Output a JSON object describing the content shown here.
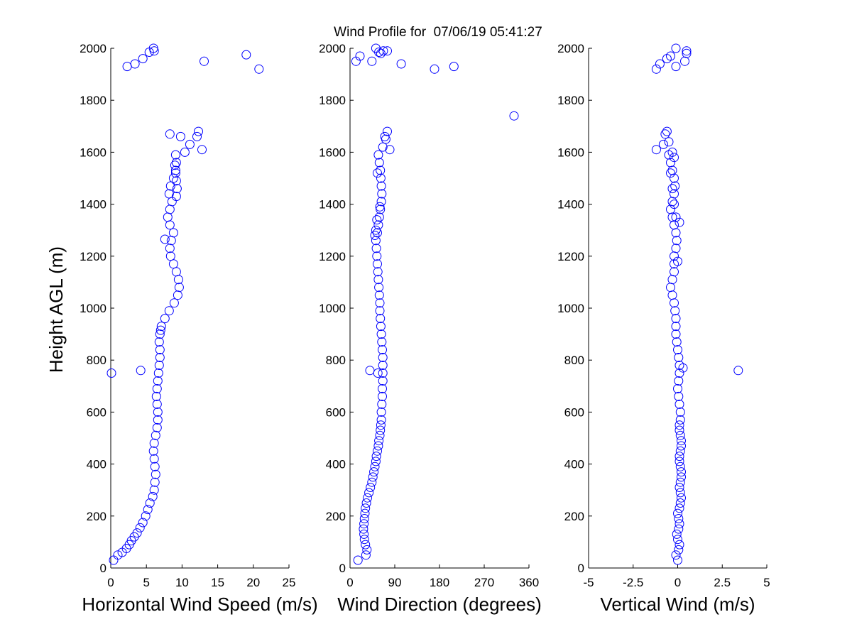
{
  "figure": {
    "title": "Wind Profile for  07/06/19 05:41:27",
    "ylabel": "Height AGL (m)"
  },
  "colors": {
    "marker": "#0000ff",
    "axis": "#000000"
  },
  "chart_data": [
    {
      "type": "scatter",
      "title": "",
      "xlabel": "Horizontal Wind Speed (m/s)",
      "ylabel": "Height AGL (m)",
      "xlim": [
        0,
        25
      ],
      "ylim": [
        0,
        2000
      ],
      "xticks": [
        0,
        5,
        10,
        15,
        20,
        25
      ],
      "xtick_labels": [
        "0",
        "5",
        "10",
        "15",
        "20",
        "25"
      ],
      "yticks": [
        0,
        200,
        400,
        600,
        800,
        1000,
        1200,
        1400,
        1600,
        1800,
        2000
      ],
      "ytick_labels": [
        "0",
        "200",
        "400",
        "600",
        "800",
        "1000",
        "1200",
        "1400",
        "1600",
        "1800",
        "2000"
      ],
      "grid": false,
      "x": [
        0.4,
        1.0,
        1.6,
        2.2,
        2.6,
        2.9,
        3.3,
        3.7,
        4.1,
        4.5,
        4.9,
        5.2,
        5.5,
        5.9,
        6.1,
        6.2,
        6.3,
        6.2,
        6.1,
        6.0,
        6.1,
        6.3,
        6.5,
        6.6,
        6.6,
        6.5,
        6.4,
        6.5,
        6.6,
        6.7,
        6.8,
        6.9,
        6.9,
        6.8,
        6.9,
        7.0,
        7.1,
        7.6,
        8.2,
        8.9,
        9.4,
        9.6,
        9.5,
        9.2,
        8.8,
        8.4,
        8.3,
        8.5,
        8.8,
        8.3,
        7.6,
        8.0,
        8.3,
        8.6,
        8.2,
        8.4,
        8.8,
        9.1,
        9.2,
        9.1,
        9.0,
        9.1,
        9.2,
        9.3,
        9.2,
        10.4,
        11.1,
        12.1,
        12.3,
        12.8,
        8.3,
        9.8,
        0.1,
        4.2,
        2.3,
        3.4,
        4.5,
        5.4,
        6.0,
        6.1,
        13.1,
        19.0,
        20.8
      ],
      "y": [
        30,
        50,
        60,
        75,
        90,
        105,
        120,
        135,
        155,
        175,
        200,
        225,
        250,
        275,
        300,
        330,
        360,
        390,
        420,
        450,
        480,
        510,
        540,
        570,
        600,
        630,
        660,
        690,
        720,
        750,
        780,
        810,
        840,
        870,
        900,
        915,
        930,
        960,
        990,
        1020,
        1050,
        1080,
        1110,
        1140,
        1170,
        1200,
        1230,
        1260,
        1290,
        1320,
        1265,
        1350,
        1380,
        1410,
        1440,
        1470,
        1500,
        1530,
        1560,
        1590,
        1550,
        1520,
        1490,
        1460,
        1430,
        1600,
        1630,
        1660,
        1680,
        1610,
        1670,
        1660,
        750,
        760,
        1930,
        1940,
        1960,
        1985,
        2000,
        1990,
        1950,
        1975,
        1920
      ]
    },
    {
      "type": "scatter",
      "title": "",
      "xlabel": "Wind Direction (degrees)",
      "ylabel": "Height AGL (m)",
      "xlim": [
        0,
        360
      ],
      "ylim": [
        0,
        2000
      ],
      "xticks": [
        0,
        90,
        180,
        270,
        360
      ],
      "xtick_labels": [
        "0",
        "90",
        "180",
        "270",
        "360"
      ],
      "yticks": [
        0,
        200,
        400,
        600,
        800,
        1000,
        1200,
        1400,
        1600,
        1800,
        2000
      ],
      "ytick_labels": [
        "0",
        "200",
        "400",
        "600",
        "800",
        "1000",
        "1200",
        "1400",
        "1600",
        "1800",
        "2000"
      ],
      "grid": false,
      "x": [
        16,
        32,
        34,
        31,
        29,
        28,
        27,
        28,
        29,
        30,
        31,
        33,
        35,
        38,
        41,
        44,
        46,
        48,
        50,
        52,
        53,
        55,
        57,
        58,
        60,
        61,
        62,
        63,
        63,
        64,
        65,
        65,
        66,
        66,
        66,
        66,
        65,
        64,
        63,
        62,
        61,
        60,
        60,
        59,
        58,
        57,
        56,
        55,
        54,
        53,
        52,
        55,
        57,
        59,
        61,
        63,
        64,
        63,
        62,
        61,
        59,
        57,
        55,
        52,
        50,
        54,
        60,
        66,
        72,
        75,
        80,
        70,
        56,
        40,
        44,
        58,
        62,
        75,
        52,
        67,
        103,
        170,
        209,
        12,
        20,
        330
      ],
      "y": [
        30,
        50,
        70,
        90,
        110,
        130,
        150,
        170,
        190,
        210,
        230,
        250,
        270,
        290,
        310,
        330,
        350,
        370,
        390,
        410,
        430,
        450,
        470,
        490,
        510,
        530,
        550,
        570,
        600,
        630,
        660,
        690,
        720,
        750,
        780,
        810,
        840,
        870,
        900,
        930,
        960,
        990,
        1020,
        1050,
        1080,
        1110,
        1140,
        1170,
        1200,
        1230,
        1260,
        1290,
        1320,
        1350,
        1380,
        1410,
        1440,
        1470,
        1500,
        1530,
        1560,
        1590,
        1520,
        1300,
        1280,
        1340,
        1390,
        1620,
        1650,
        1680,
        1610,
        1660,
        750,
        760,
        1950,
        1985,
        1980,
        1990,
        2000,
        1990,
        1940,
        1920,
        1930,
        1950,
        1970,
        1740
      ]
    },
    {
      "type": "scatter",
      "title": "",
      "xlabel": "Vertical Wind (m/s)",
      "ylabel": "Height AGL (m)",
      "xlim": [
        -5,
        5
      ],
      "ylim": [
        0,
        2000
      ],
      "xticks": [
        -5,
        -2.5,
        0,
        2.5,
        5
      ],
      "xtick_labels": [
        "-5",
        "-2.5",
        "0",
        "2.5",
        "5"
      ],
      "yticks": [
        0,
        200,
        400,
        600,
        800,
        1000,
        1200,
        1400,
        1600,
        1800,
        2000
      ],
      "ytick_labels": [
        "0",
        "200",
        "400",
        "600",
        "800",
        "1000",
        "1200",
        "1400",
        "1600",
        "1800",
        "2000"
      ],
      "grid": false,
      "x": [
        0.0,
        -0.1,
        0.05,
        0.1,
        0.0,
        -0.05,
        0.05,
        0.1,
        0.05,
        0.0,
        0.1,
        0.15,
        0.2,
        0.15,
        0.1,
        0.15,
        0.2,
        0.2,
        0.15,
        0.1,
        0.1,
        0.15,
        0.2,
        0.2,
        0.15,
        0.1,
        0.1,
        0.15,
        0.15,
        0.1,
        0.05,
        0.0,
        0.05,
        0.1,
        0.1,
        0.05,
        0.0,
        -0.05,
        -0.1,
        -0.1,
        -0.1,
        -0.15,
        -0.2,
        -0.3,
        -0.4,
        -0.3,
        -0.2,
        -0.2,
        -0.2,
        -0.1,
        -0.05,
        -0.1,
        -0.2,
        -0.3,
        -0.4,
        -0.3,
        -0.2,
        -0.15,
        -0.2,
        -0.3,
        -0.4,
        -0.5,
        -0.4,
        -0.3,
        -0.2,
        -0.1,
        0.1,
        0.0,
        -0.6,
        -0.8,
        -1.2,
        -0.7,
        -0.5,
        -0.3,
        -0.2,
        0.3,
        3.4,
        -1.2,
        -1.0,
        -0.6,
        -0.4,
        -0.1,
        0.5,
        0.5,
        0.4,
        -0.1
      ],
      "y": [
        30,
        50,
        70,
        90,
        110,
        130,
        150,
        170,
        190,
        210,
        230,
        250,
        270,
        290,
        310,
        330,
        350,
        370,
        390,
        410,
        430,
        450,
        470,
        490,
        510,
        530,
        550,
        570,
        600,
        630,
        660,
        690,
        720,
        750,
        780,
        810,
        840,
        870,
        900,
        930,
        960,
        990,
        1020,
        1050,
        1080,
        1110,
        1140,
        1170,
        1200,
        1230,
        1260,
        1290,
        1320,
        1350,
        1380,
        1410,
        1440,
        1470,
        1500,
        1530,
        1560,
        1590,
        1520,
        1460,
        1400,
        1350,
        1330,
        1180,
        1680,
        1630,
        1610,
        1670,
        1640,
        1600,
        1580,
        770,
        760,
        1920,
        1940,
        1960,
        1970,
        1930,
        1990,
        1980,
        1950,
        2000
      ]
    }
  ]
}
